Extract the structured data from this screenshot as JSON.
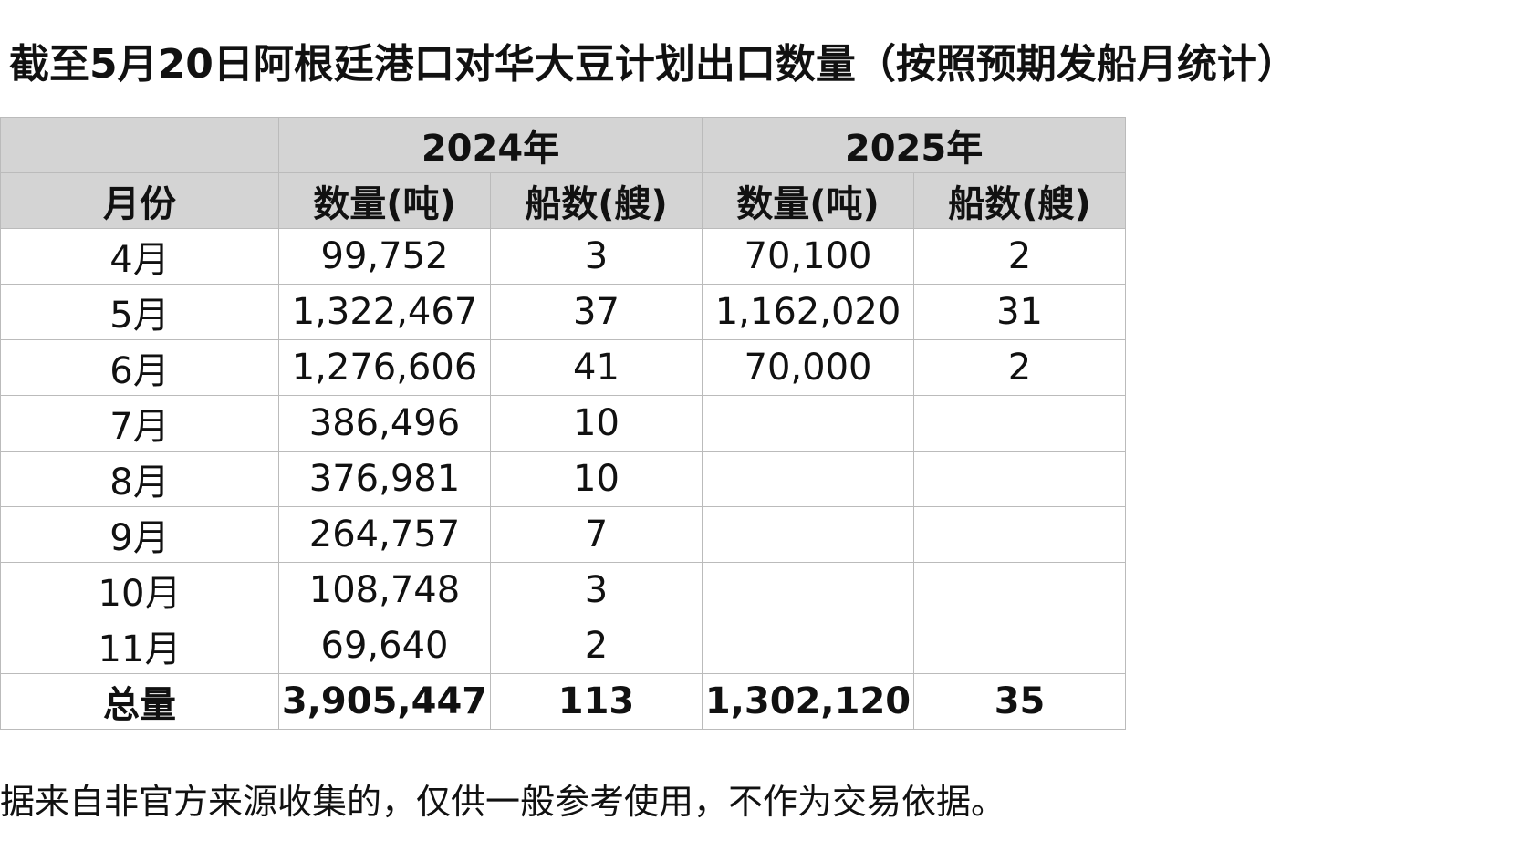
{
  "header": {
    "title": "截至5月20日阿根廷港口对华大豆计划出口数量（按照预期发船月统计）"
  },
  "table": {
    "year_headers": [
      "2024年",
      "2025年"
    ],
    "column_headers": [
      "月份",
      "数量(吨)",
      "船数(艘)",
      "数量(吨)",
      "船数(艘)"
    ],
    "rows": [
      [
        "4月",
        "99,752",
        "3",
        "70,100",
        "2"
      ],
      [
        "5月",
        "1,322,467",
        "37",
        "1,162,020",
        "31"
      ],
      [
        "6月",
        "1,276,606",
        "41",
        "70,000",
        "2"
      ],
      [
        "7月",
        "386,496",
        "10"
      ],
      [
        "8月",
        "376,981",
        "10"
      ],
      [
        "9月",
        "264,757",
        "7"
      ],
      [
        "10月",
        "108,748",
        "3"
      ],
      [
        "11月",
        "69,640",
        "2"
      ]
    ],
    "total": [
      "总量",
      "3,905,447",
      "113",
      "1,302,120",
      "35"
    ]
  },
  "footnote": "据来自非官方来源收集的，仅供一般参考使用，不作为交易依据。"
}
